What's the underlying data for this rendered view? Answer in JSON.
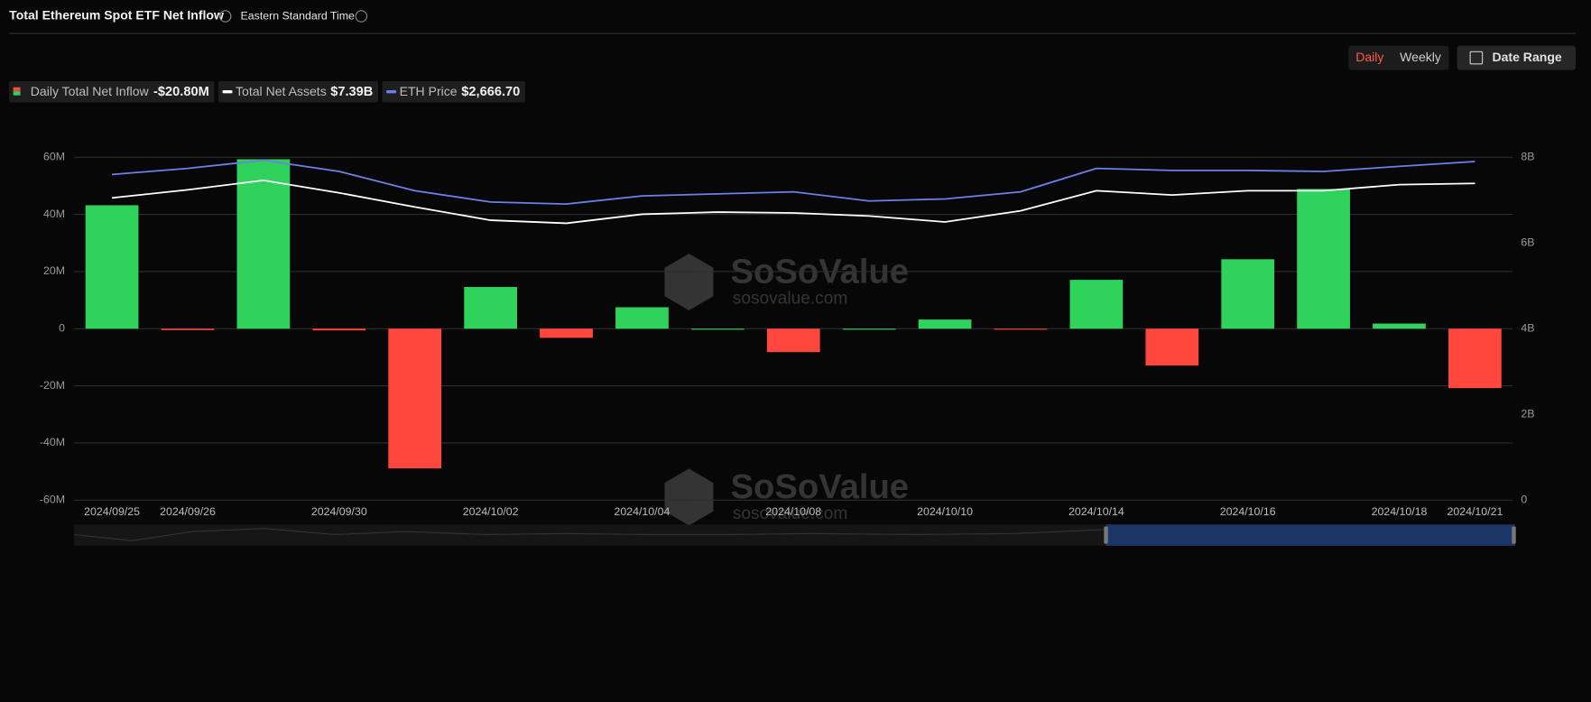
{
  "header": {
    "title": "Total Ethereum Spot ETF Net Inflow",
    "timezone": "Eastern Standard Time"
  },
  "controls": {
    "daily": "Daily",
    "weekly": "Weekly",
    "date_range": "Date Range"
  },
  "watermark": {
    "brand": "SoSoValue",
    "site": "sosovalue.com"
  },
  "chart_data": {
    "type": "bar",
    "categories": [
      "2024/09/25",
      "2024/09/26",
      null,
      "2024/09/30",
      null,
      "2024/10/02",
      null,
      "2024/10/04",
      null,
      "2024/10/08",
      null,
      "2024/10/10",
      null,
      "2024/10/14",
      null,
      "2024/10/16",
      null,
      "2024/10/18",
      "2024/10/21"
    ],
    "series": [
      {
        "name": "Daily Total Net Inflow",
        "latest_label": "-$20.80M",
        "colors": {
          "positive": "#2fd25a",
          "negative": "#ff473d"
        },
        "values": [
          43.2,
          -0.5,
          59.3,
          -0.6,
          -48.9,
          14.6,
          -3.2,
          7.5,
          0,
          -8.2,
          0,
          3.2,
          -0.1,
          17.1,
          -12.9,
          24.3,
          48.9,
          1.8,
          -20.8
        ]
      },
      {
        "name": "Total Net Assets",
        "latest_label": "$7.39B",
        "type": "line",
        "axis": "y2",
        "color": "#ffffff",
        "values": [
          7.05,
          7.24,
          7.46,
          7.17,
          6.84,
          6.53,
          6.46,
          6.67,
          6.72,
          6.7,
          6.63,
          6.49,
          6.75,
          7.22,
          7.12,
          7.22,
          7.22,
          7.36,
          7.39
        ]
      },
      {
        "name": "ETH Price",
        "latest_label": "$2,666.70",
        "type": "line",
        "axis": "y3",
        "color": "#6c80e6",
        "values": [
          2564,
          2612,
          2676,
          2588,
          2436,
          2348,
          2332,
          2396,
          2412,
          2428,
          2356,
          2372,
          2428,
          2612,
          2596,
          2596,
          2588,
          2628,
          2666.7
        ]
      }
    ],
    "ylim": [
      -60,
      60
    ],
    "yticks": [
      {
        "value": -60,
        "label": "-60M"
      },
      {
        "value": -40,
        "label": "-40M"
      },
      {
        "value": -20,
        "label": "-20M"
      },
      0,
      {
        "value": 20,
        "label": "20M"
      },
      {
        "value": 40,
        "label": "40M"
      },
      {
        "value": 60,
        "label": "60M"
      }
    ],
    "y2lim": [
      0,
      8
    ],
    "y2ticks": [
      0,
      {
        "value": 2,
        "label": "2B"
      },
      {
        "value": 4,
        "label": "4B"
      },
      {
        "value": 6,
        "label": "6B"
      },
      {
        "value": 8,
        "label": "8B"
      }
    ],
    "y3lim": [
      0,
      2700
    ],
    "grid": true
  }
}
